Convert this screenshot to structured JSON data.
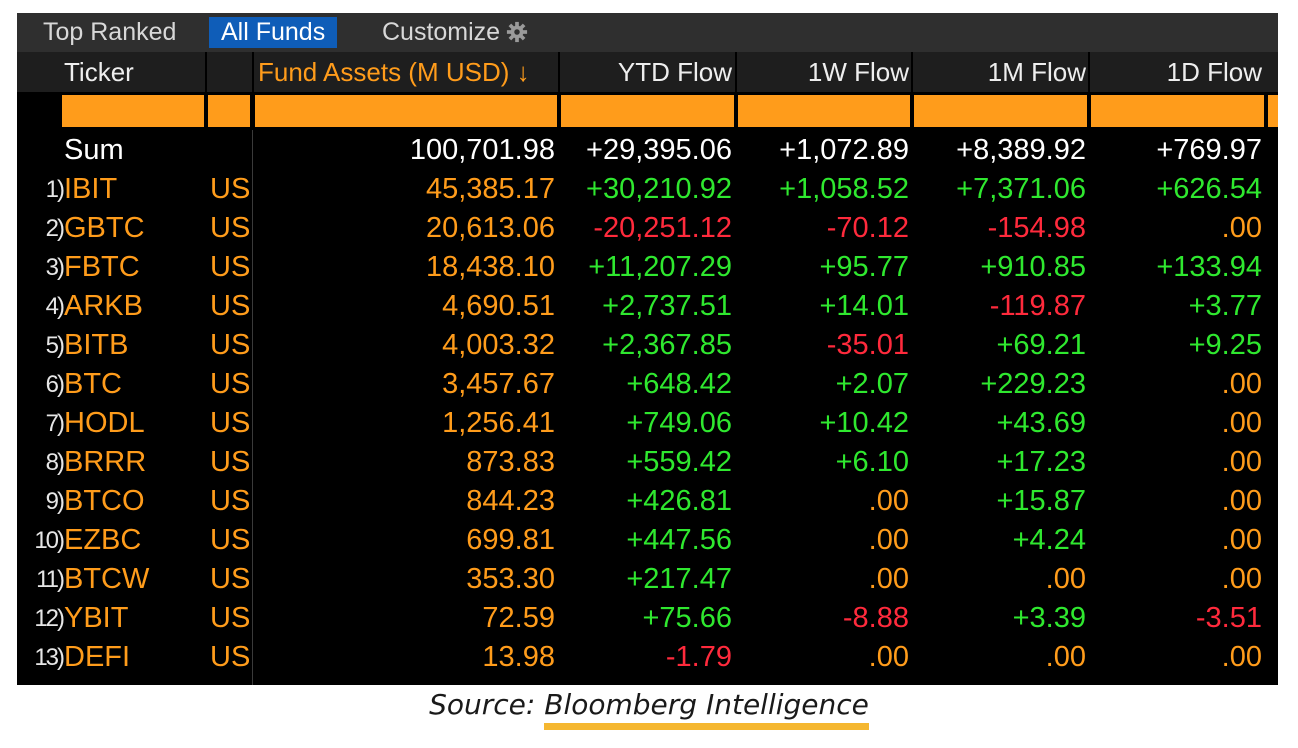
{
  "tabs": [
    {
      "label": "Top Ranked",
      "active": false
    },
    {
      "label": "All Funds",
      "active": true
    },
    {
      "label": "Customize",
      "active": false,
      "icon": "gear-icon"
    }
  ],
  "columns": {
    "ticker": "Ticker",
    "assets": "Fund Assets (M USD) ↓",
    "ytd": "YTD Flow",
    "w1": "1W Flow",
    "m1": "1M Flow",
    "d1": "1D Flow"
  },
  "sum": {
    "label": "Sum",
    "assets": "100,701.98",
    "ytd": "+29,395.06",
    "w1": "+1,072.89",
    "m1": "+8,389.92",
    "d1": "+769.97"
  },
  "rows": [
    {
      "idx": "1)",
      "ticker": "IBIT",
      "country": "US",
      "assets": "45,385.17",
      "ytd": "+30,210.92",
      "w1": "+1,058.52",
      "m1": "+7,371.06",
      "d1": "+626.54"
    },
    {
      "idx": "2)",
      "ticker": "GBTC",
      "country": "US",
      "assets": "20,613.06",
      "ytd": "-20,251.12",
      "w1": "-70.12",
      "m1": "-154.98",
      "d1": ".00"
    },
    {
      "idx": "3)",
      "ticker": "FBTC",
      "country": "US",
      "assets": "18,438.10",
      "ytd": "+11,207.29",
      "w1": "+95.77",
      "m1": "+910.85",
      "d1": "+133.94"
    },
    {
      "idx": "4)",
      "ticker": "ARKB",
      "country": "US",
      "assets": "4,690.51",
      "ytd": "+2,737.51",
      "w1": "+14.01",
      "m1": "-119.87",
      "d1": "+3.77"
    },
    {
      "idx": "5)",
      "ticker": "BITB",
      "country": "US",
      "assets": "4,003.32",
      "ytd": "+2,367.85",
      "w1": "-35.01",
      "m1": "+69.21",
      "d1": "+9.25"
    },
    {
      "idx": "6)",
      "ticker": "BTC",
      "country": "US",
      "assets": "3,457.67",
      "ytd": "+648.42",
      "w1": "+2.07",
      "m1": "+229.23",
      "d1": ".00"
    },
    {
      "idx": "7)",
      "ticker": "HODL",
      "country": "US",
      "assets": "1,256.41",
      "ytd": "+749.06",
      "w1": "+10.42",
      "m1": "+43.69",
      "d1": ".00"
    },
    {
      "idx": "8)",
      "ticker": "BRRR",
      "country": "US",
      "assets": "873.83",
      "ytd": "+559.42",
      "w1": "+6.10",
      "m1": "+17.23",
      "d1": ".00"
    },
    {
      "idx": "9)",
      "ticker": "BTCO",
      "country": "US",
      "assets": "844.23",
      "ytd": "+426.81",
      "w1": ".00",
      "m1": "+15.87",
      "d1": ".00"
    },
    {
      "idx": "10)",
      "ticker": "EZBC",
      "country": "US",
      "assets": "699.81",
      "ytd": "+447.56",
      "w1": ".00",
      "m1": "+4.24",
      "d1": ".00"
    },
    {
      "idx": "11)",
      "ticker": "BTCW",
      "country": "US",
      "assets": "353.30",
      "ytd": "+217.47",
      "w1": ".00",
      "m1": ".00",
      "d1": ".00"
    },
    {
      "idx": "12)",
      "ticker": "YBIT",
      "country": "US",
      "assets": "72.59",
      "ytd": "+75.66",
      "w1": "-8.88",
      "m1": "+3.39",
      "d1": "-3.51"
    },
    {
      "idx": "13)",
      "ticker": "DEFI",
      "country": "US",
      "assets": "13.98",
      "ytd": "-1.79",
      "w1": ".00",
      "m1": ".00",
      "d1": ".00"
    }
  ],
  "colors": {
    "positive": "#2fe82f",
    "negative": "#ff2a3c",
    "zero": "#ff9c1b",
    "accent_orange": "#ff9c1b",
    "active_tab": "#0f5db8"
  },
  "source": {
    "prefix": "Source: ",
    "brand": "Bloomberg Intelligence"
  }
}
